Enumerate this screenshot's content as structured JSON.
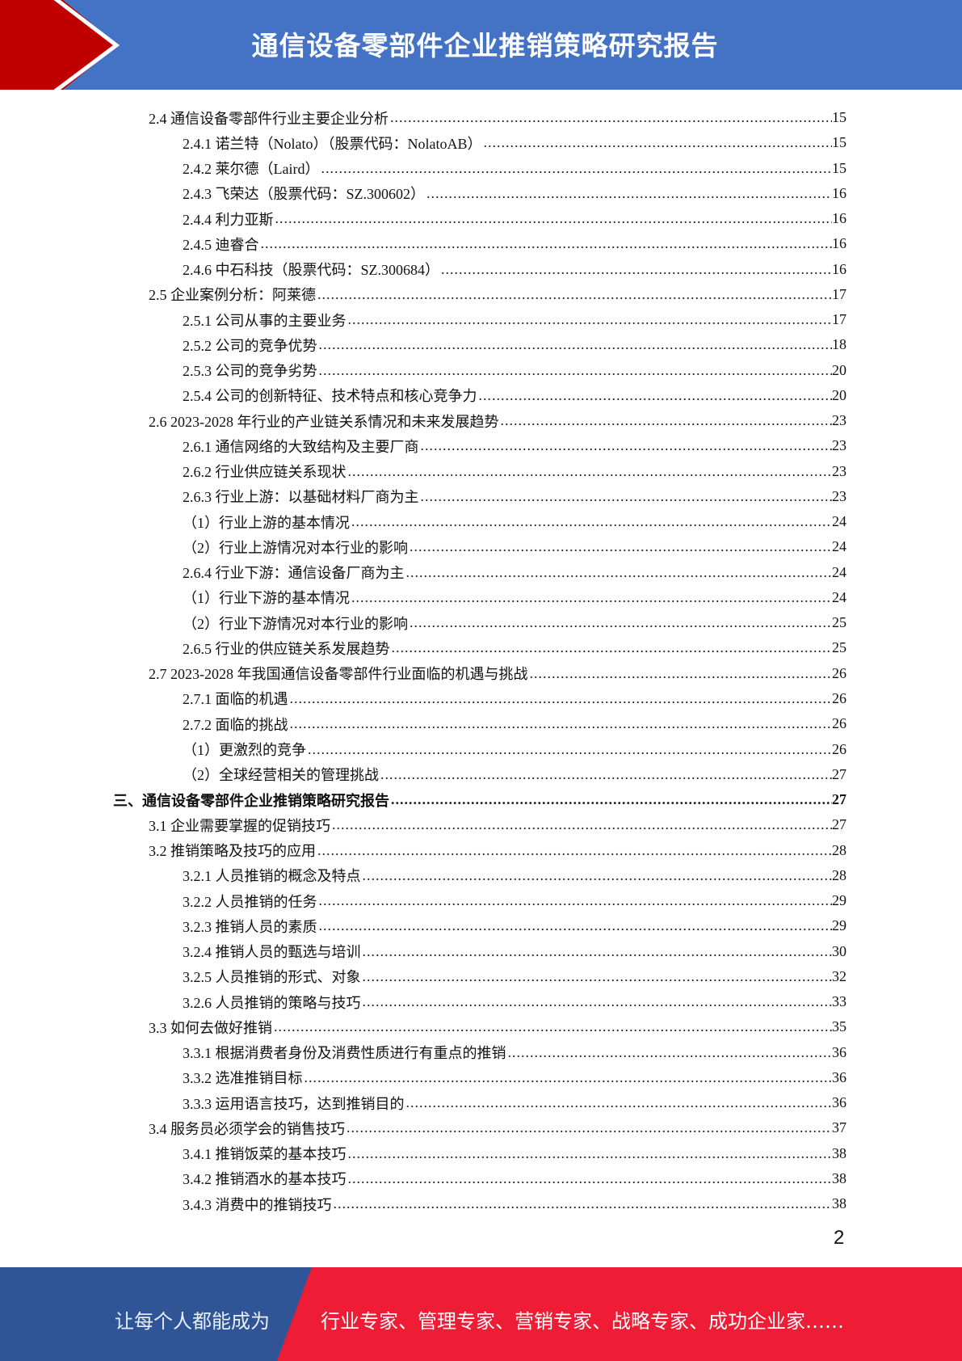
{
  "header": {
    "title": "通信设备零部件企业推销策略研究报告"
  },
  "colors": {
    "header_blue": "#4472c4",
    "chevron_red": "#c00000",
    "footer_blue": "#2f5597",
    "footer_red": "#ee1c35"
  },
  "toc": [
    {
      "level": 1,
      "text": "2.4  通信设备零部件行业主要企业分析",
      "page": "15"
    },
    {
      "level": 2,
      "text": "2.4.1  诺兰特（Nolato）（股票代码：NolatoAB）",
      "page": "15"
    },
    {
      "level": 2,
      "text": "2.4.2  莱尔德（Laird）",
      "page": "15"
    },
    {
      "level": 2,
      "text": "2.4.3  飞荣达（股票代码：SZ.300602）",
      "page": "16"
    },
    {
      "level": 2,
      "text": "2.4.4  利力亚斯",
      "page": "16"
    },
    {
      "level": 2,
      "text": "2.4.5  迪睿合",
      "page": "16"
    },
    {
      "level": 2,
      "text": "2.4.6  中石科技（股票代码：SZ.300684）",
      "page": "16"
    },
    {
      "level": 1,
      "text": "2.5  企业案例分析：阿莱德",
      "page": "17"
    },
    {
      "level": 2,
      "text": "2.5.1  公司从事的主要业务",
      "page": "17"
    },
    {
      "level": 2,
      "text": "2.5.2  公司的竞争优势",
      "page": "18"
    },
    {
      "level": 2,
      "text": "2.5.3  公司的竞争劣势",
      "page": "20"
    },
    {
      "level": 2,
      "text": "2.5.4  公司的创新特征、技术特点和核心竞争力",
      "page": "20"
    },
    {
      "level": 1,
      "text": "2.6 2023-2028 年行业的产业链关系情况和未来发展趋势",
      "page": "23"
    },
    {
      "level": 2,
      "text": "2.6.1  通信网络的大致结构及主要厂商",
      "page": "23"
    },
    {
      "level": 2,
      "text": "2.6.2  行业供应链关系现状",
      "page": "23"
    },
    {
      "level": 2,
      "text": "2.6.3  行业上游：以基础材料厂商为主",
      "page": "23"
    },
    {
      "level": 3,
      "text": "（1）行业上游的基本情况",
      "page": "24"
    },
    {
      "level": 3,
      "text": "（2）行业上游情况对本行业的影响",
      "page": "24"
    },
    {
      "level": 2,
      "text": "2.6.4  行业下游：通信设备厂商为主",
      "page": "24"
    },
    {
      "level": 3,
      "text": "（1）行业下游的基本情况",
      "page": "24"
    },
    {
      "level": 3,
      "text": "（2）行业下游情况对本行业的影响",
      "page": "25"
    },
    {
      "level": 2,
      "text": "2.6.5  行业的供应链关系发展趋势",
      "page": "25"
    },
    {
      "level": 1,
      "text": "2.7 2023-2028 年我国通信设备零部件行业面临的机遇与挑战",
      "page": "26"
    },
    {
      "level": 2,
      "text": "2.7.1  面临的机遇",
      "page": "26"
    },
    {
      "level": 2,
      "text": "2.7.2  面临的挑战",
      "page": "26"
    },
    {
      "level": 3,
      "text": "（1）更激烈的竞争",
      "page": "26"
    },
    {
      "level": 3,
      "text": "（2）全球经营相关的管理挑战",
      "page": "27"
    },
    {
      "level": 0,
      "text": "三、通信设备零部件企业推销策略研究报告",
      "page": "27"
    },
    {
      "level": 1,
      "text": "3.1  企业需要掌握的促销技巧",
      "page": "27"
    },
    {
      "level": 1,
      "text": "3.2  推销策略及技巧的应用",
      "page": "28"
    },
    {
      "level": 2,
      "text": "3.2.1  人员推销的概念及特点",
      "page": "28"
    },
    {
      "level": 2,
      "text": "3.2.2  人员推销的任务",
      "page": "29"
    },
    {
      "level": 2,
      "text": "3.2.3  推销人员的素质",
      "page": "29"
    },
    {
      "level": 2,
      "text": "3.2.4  推销人员的甄选与培训",
      "page": "30"
    },
    {
      "level": 2,
      "text": "3.2.5  人员推销的形式、对象",
      "page": "32"
    },
    {
      "level": 2,
      "text": "3.2.6  人员推销的策略与技巧",
      "page": "33"
    },
    {
      "level": 1,
      "text": "3.3  如何去做好推销",
      "page": "35"
    },
    {
      "level": 2,
      "text": "3.3.1  根据消费者身份及消费性质进行有重点的推销",
      "page": "36"
    },
    {
      "level": 2,
      "text": "3.3.2  选准推销目标",
      "page": "36"
    },
    {
      "level": 2,
      "text": "3.3.3  运用语言技巧，达到推销目的",
      "page": "36"
    },
    {
      "level": 1,
      "text": "3.4  服务员必须学会的销售技巧",
      "page": "37"
    },
    {
      "level": 2,
      "text": "3.4.1  推销饭菜的基本技巧",
      "page": "38"
    },
    {
      "level": 2,
      "text": "3.4.2  推销酒水的基本技巧",
      "page": "38"
    },
    {
      "level": 2,
      "text": "3.4.3  消费中的推销技巧",
      "page": "38"
    }
  ],
  "page_number": "2",
  "footer": {
    "slogan_left": "让每个人都能成为",
    "slogan_right": "行业专家、管理专家、营销专家、战略专家、成功企业家……"
  }
}
